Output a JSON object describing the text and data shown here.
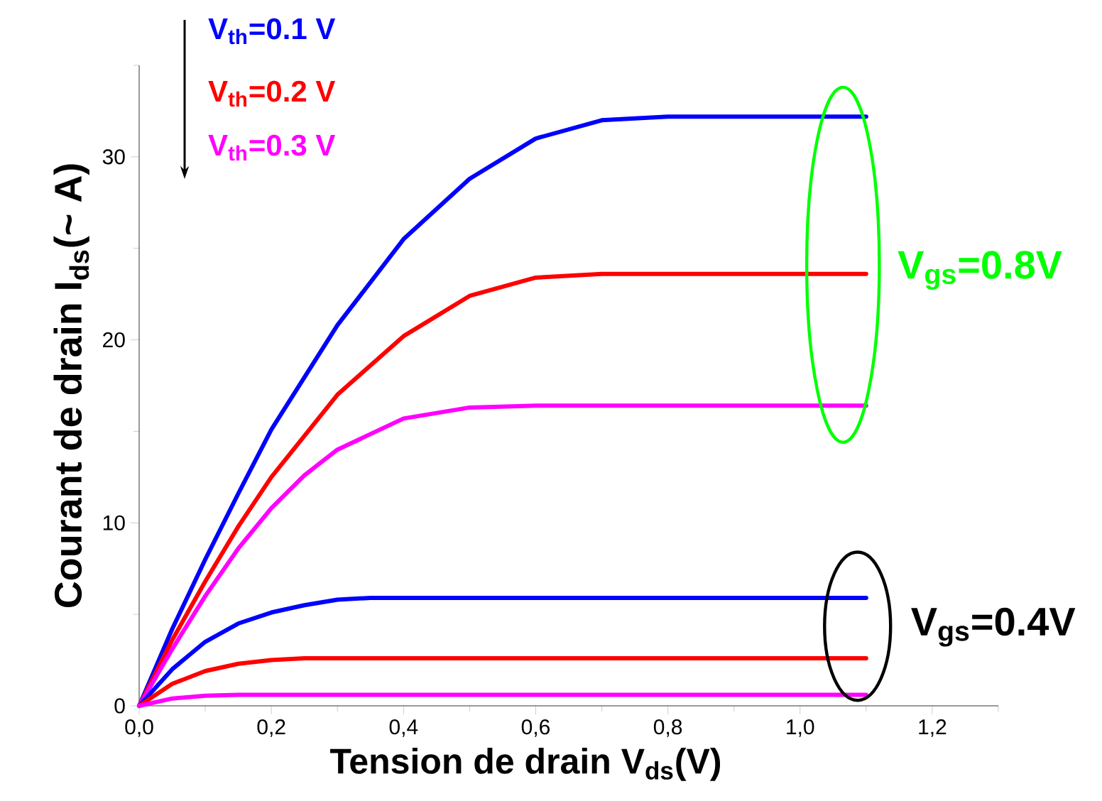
{
  "chart_data": {
    "type": "line",
    "xlabel": "Tension de drain V$_{ds}$(V)",
    "ylabel": "Courant de drain I$_{ds}$(~ A)",
    "xlim": [
      0,
      1.3
    ],
    "ylim": [
      0,
      35
    ],
    "xticks": [
      {
        "value": 0,
        "label": "0,0"
      },
      {
        "value": 0.1,
        "label": null
      },
      {
        "value": 0.2,
        "label": "0,2"
      },
      {
        "value": 0.3,
        "label": null
      },
      {
        "value": 0.4,
        "label": "0,4"
      },
      {
        "value": 0.5,
        "label": null
      },
      {
        "value": 0.6,
        "label": "0,6"
      },
      {
        "value": 0.7,
        "label": null
      },
      {
        "value": 0.8,
        "label": "0,8"
      },
      {
        "value": 0.9,
        "label": null
      },
      {
        "value": 1.0,
        "label": "1,0"
      },
      {
        "value": 1.1,
        "label": null
      },
      {
        "value": 1.2,
        "label": "1,2"
      },
      {
        "value": 1.3,
        "label": null
      }
    ],
    "yticks": [
      0,
      {
        "value": 5,
        "label": null
      },
      10,
      {
        "value": 15,
        "label": null
      },
      20,
      {
        "value": 25,
        "label": null
      },
      30,
      {
        "value": 35,
        "label": null
      }
    ],
    "legend": "top left",
    "series": [
      {
        "name": "V$_{th}$=0.1 V",
        "color": "#0000ff",
        "x": [
          0,
          0.05,
          0.1,
          0.15,
          0.2,
          0.3,
          0.4,
          0.5,
          0.6,
          0.7,
          0.8,
          1.1
        ],
        "values": [
          0,
          4.2,
          8.0,
          11.6,
          15.1,
          20.8,
          25.5,
          28.8,
          31.0,
          32.0,
          32.2,
          32.2
        ]
      },
      {
        "name": "V$_{th}$=0.2 V",
        "color": "#ff0000",
        "x": [
          0,
          0.05,
          0.1,
          0.15,
          0.2,
          0.3,
          0.4,
          0.5,
          0.6,
          0.7,
          1.1
        ],
        "values": [
          0,
          3.6,
          6.8,
          9.8,
          12.5,
          17.0,
          20.2,
          22.4,
          23.4,
          23.6,
          23.6
        ]
      },
      {
        "name": "V$_{th}$=0.3 V",
        "color": "#ff00ff",
        "x": [
          0,
          0.05,
          0.1,
          0.15,
          0.2,
          0.25,
          0.3,
          0.4,
          0.5,
          0.6,
          1.1
        ],
        "values": [
          0,
          3.1,
          6.0,
          8.6,
          10.8,
          12.6,
          14.0,
          15.7,
          16.3,
          16.4,
          16.4
        ]
      },
      {
        "color": "#0000ff",
        "x": [
          0,
          0.05,
          0.1,
          0.15,
          0.2,
          0.25,
          0.3,
          0.35,
          1.1
        ],
        "values": [
          0,
          2.0,
          3.5,
          4.5,
          5.1,
          5.5,
          5.8,
          5.9,
          5.9
        ]
      },
      {
        "color": "#ff0000",
        "x": [
          0,
          0.05,
          0.1,
          0.15,
          0.2,
          0.25,
          1.1
        ],
        "values": [
          0,
          1.2,
          1.9,
          2.3,
          2.5,
          2.6,
          2.6
        ]
      },
      {
        "color": "#ff00ff",
        "x": [
          0,
          0.05,
          0.1,
          0.15,
          1.1
        ],
        "values": [
          0,
          0.4,
          0.55,
          0.6,
          0.6
        ]
      }
    ],
    "annotations": [
      "V$_{gs}$=0.8V",
      "V$_{gs}$=0.4V"
    ]
  }
}
